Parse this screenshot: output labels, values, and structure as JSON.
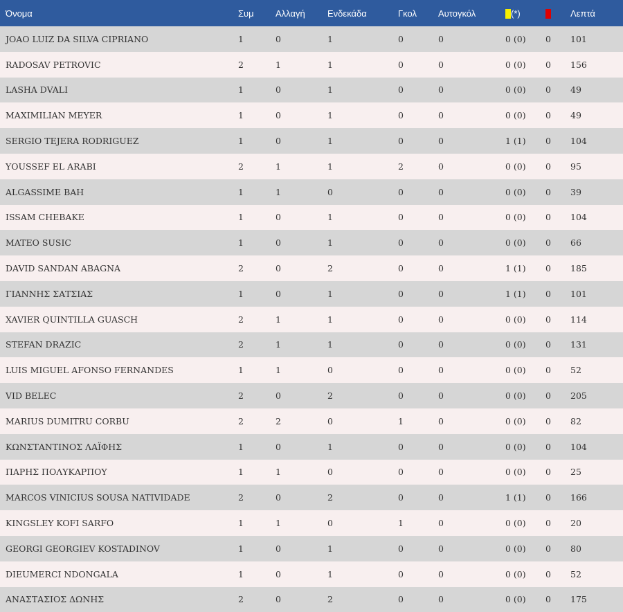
{
  "header": {
    "name": "Όνομα",
    "apps": "Συμ",
    "sub": "Αλλαγή",
    "starts": "Ενδεκάδα",
    "goals": "Γκολ",
    "own_goals": "Αυτογκόλ",
    "yellow_suffix": "(*)",
    "yellow_icon": "yellow-card-icon",
    "red_icon": "red-card-icon",
    "minutes": "Λεπτά"
  },
  "colors": {
    "header_bg": "#2f5b9e",
    "row_odd": "#d6d6d6",
    "row_even": "#f8efef",
    "yellow": "#f7f000",
    "red": "#e00000"
  },
  "rows": [
    {
      "name": "JOAO LUIZ DA SILVA CIPRIANO",
      "apps": "1",
      "sub": "0",
      "starts": "1",
      "goals": "0",
      "own_goals": "0",
      "yellow": "0 (0)",
      "red": "0",
      "minutes": "101"
    },
    {
      "name": "RADOSAV PETROVIC",
      "apps": "2",
      "sub": "1",
      "starts": "1",
      "goals": "0",
      "own_goals": "0",
      "yellow": "0 (0)",
      "red": "0",
      "minutes": "156"
    },
    {
      "name": "LASHA DVALI",
      "apps": "1",
      "sub": "0",
      "starts": "1",
      "goals": "0",
      "own_goals": "0",
      "yellow": "0 (0)",
      "red": "0",
      "minutes": "49"
    },
    {
      "name": "MAXIMILIAN MEYER",
      "apps": "1",
      "sub": "0",
      "starts": "1",
      "goals": "0",
      "own_goals": "0",
      "yellow": "0 (0)",
      "red": "0",
      "minutes": "49"
    },
    {
      "name": "SERGIO TEJERA RODRIGUEZ",
      "apps": "1",
      "sub": "0",
      "starts": "1",
      "goals": "0",
      "own_goals": "0",
      "yellow": "1 (1)",
      "red": "0",
      "minutes": "104"
    },
    {
      "name": "YOUSSEF EL ARABI",
      "apps": "2",
      "sub": "1",
      "starts": "1",
      "goals": "2",
      "own_goals": "0",
      "yellow": "0 (0)",
      "red": "0",
      "minutes": "95"
    },
    {
      "name": "ALGASSIME BAH",
      "apps": "1",
      "sub": "1",
      "starts": "0",
      "goals": "0",
      "own_goals": "0",
      "yellow": "0 (0)",
      "red": "0",
      "minutes": "39"
    },
    {
      "name": "ISSAM CHEBAKE",
      "apps": "1",
      "sub": "0",
      "starts": "1",
      "goals": "0",
      "own_goals": "0",
      "yellow": "0 (0)",
      "red": "0",
      "minutes": "104"
    },
    {
      "name": "MATEO SUSIC",
      "apps": "1",
      "sub": "0",
      "starts": "1",
      "goals": "0",
      "own_goals": "0",
      "yellow": "0 (0)",
      "red": "0",
      "minutes": "66"
    },
    {
      "name": "DAVID SANDAN ABAGNA",
      "apps": "2",
      "sub": "0",
      "starts": "2",
      "goals": "0",
      "own_goals": "0",
      "yellow": "1 (1)",
      "red": "0",
      "minutes": "185"
    },
    {
      "name": "ΓΙΑΝΝΗΣ ΣΑΤΣΙΑΣ",
      "apps": "1",
      "sub": "0",
      "starts": "1",
      "goals": "0",
      "own_goals": "0",
      "yellow": "1 (1)",
      "red": "0",
      "minutes": "101"
    },
    {
      "name": "XAVIER QUINTILLA GUASCH",
      "apps": "2",
      "sub": "1",
      "starts": "1",
      "goals": "0",
      "own_goals": "0",
      "yellow": "0 (0)",
      "red": "0",
      "minutes": "114"
    },
    {
      "name": "STEFAN DRAZIC",
      "apps": "2",
      "sub": "1",
      "starts": "1",
      "goals": "0",
      "own_goals": "0",
      "yellow": "0 (0)",
      "red": "0",
      "minutes": "131"
    },
    {
      "name": "LUIS MIGUEL AFONSO FERNANDES",
      "apps": "1",
      "sub": "1",
      "starts": "0",
      "goals": "0",
      "own_goals": "0",
      "yellow": "0 (0)",
      "red": "0",
      "minutes": "52"
    },
    {
      "name": "VID BELEC",
      "apps": "2",
      "sub": "0",
      "starts": "2",
      "goals": "0",
      "own_goals": "0",
      "yellow": "0 (0)",
      "red": "0",
      "minutes": "205"
    },
    {
      "name": "MARIUS DUMITRU CORBU",
      "apps": "2",
      "sub": "2",
      "starts": "0",
      "goals": "1",
      "own_goals": "0",
      "yellow": "0 (0)",
      "red": "0",
      "minutes": "82"
    },
    {
      "name": "ΚΩΝΣΤΑΝΤΙΝΟΣ ΛΑΪΦΗΣ",
      "apps": "1",
      "sub": "0",
      "starts": "1",
      "goals": "0",
      "own_goals": "0",
      "yellow": "0 (0)",
      "red": "0",
      "minutes": "104"
    },
    {
      "name": "ΠΑΡΗΣ ΠΟΛΥΚΑΡΠΟΥ",
      "apps": "1",
      "sub": "1",
      "starts": "0",
      "goals": "0",
      "own_goals": "0",
      "yellow": "0 (0)",
      "red": "0",
      "minutes": "25"
    },
    {
      "name": "MARCOS VINICIUS SOUSA NATIVIDADE",
      "apps": "2",
      "sub": "0",
      "starts": "2",
      "goals": "0",
      "own_goals": "0",
      "yellow": "1 (1)",
      "red": "0",
      "minutes": "166"
    },
    {
      "name": "KINGSLEY KOFI SARFO",
      "apps": "1",
      "sub": "1",
      "starts": "0",
      "goals": "1",
      "own_goals": "0",
      "yellow": "0 (0)",
      "red": "0",
      "minutes": "20"
    },
    {
      "name": "GEORGI GEORGIEV KOSTADINOV",
      "apps": "1",
      "sub": "0",
      "starts": "1",
      "goals": "0",
      "own_goals": "0",
      "yellow": "0 (0)",
      "red": "0",
      "minutes": "80"
    },
    {
      "name": "DIEUMERCI NDONGALA",
      "apps": "1",
      "sub": "0",
      "starts": "1",
      "goals": "0",
      "own_goals": "0",
      "yellow": "0 (0)",
      "red": "0",
      "minutes": "52"
    },
    {
      "name": "ΑΝΑΣΤΑΣΙΟΣ ΔΩΝΗΣ",
      "apps": "2",
      "sub": "0",
      "starts": "2",
      "goals": "0",
      "own_goals": "0",
      "yellow": "0 (0)",
      "red": "0",
      "minutes": "175"
    }
  ]
}
